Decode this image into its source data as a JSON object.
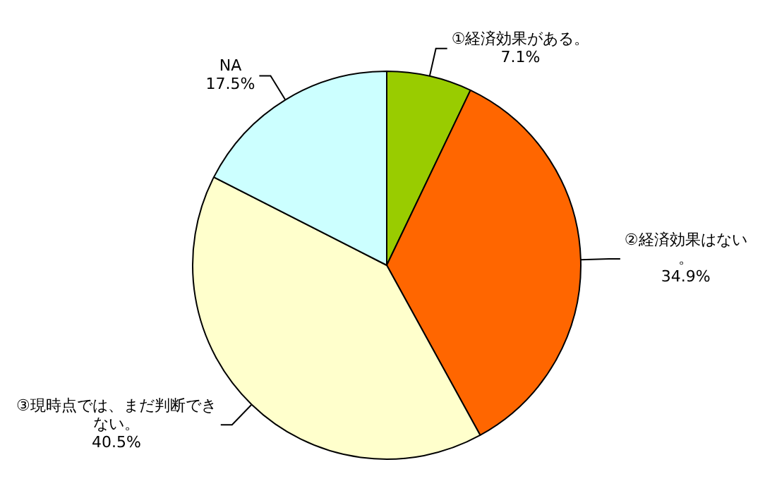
{
  "chart_data": {
    "type": "pie",
    "categories": [
      "①経済効果がある。",
      "②経済効果はない。",
      "③現時点では、まだ判断できない。",
      "NA"
    ],
    "values": [
      7.1,
      34.9,
      40.5,
      17.5
    ],
    "colors": [
      "#99cc00",
      "#ff6600",
      "#ffffcc",
      "#ccffff"
    ],
    "value_labels": [
      "7.1%",
      "34.9%",
      "40.5%",
      "17.5%"
    ]
  }
}
